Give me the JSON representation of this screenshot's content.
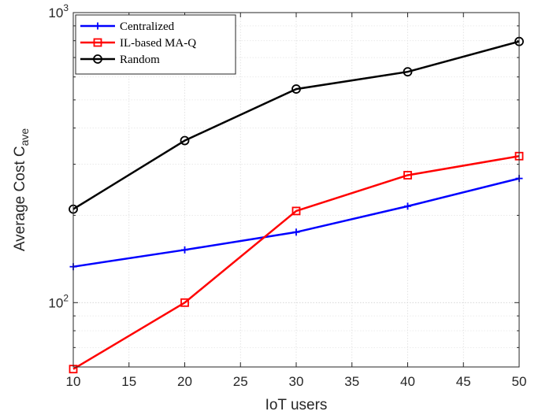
{
  "chart_data": {
    "type": "line",
    "title": "",
    "xlabel": "IoT users",
    "ylabel": "Average Cost C",
    "ylabel_sub": "ave",
    "yscale": "log",
    "x": [
      10,
      20,
      30,
      40,
      50
    ],
    "xlim": [
      10,
      50
    ],
    "xticks": [
      10,
      15,
      20,
      25,
      30,
      35,
      40,
      45,
      50
    ],
    "ylim": [
      60,
      1000
    ],
    "yticks": [
      {
        "value": 100,
        "base": "10",
        "exp": "2"
      },
      {
        "value": 1000,
        "base": "10",
        "exp": "3"
      }
    ],
    "grid": true,
    "legend_position": "top-left",
    "series": [
      {
        "name": "Centralized",
        "color": "#0000ff",
        "marker": "plus",
        "values": [
          133,
          152,
          175,
          215,
          268
        ]
      },
      {
        "name": "IL-based MA-Q",
        "color": "#ff0000",
        "marker": "square",
        "values": [
          59,
          100,
          207,
          275,
          320
        ]
      },
      {
        "name": "Random",
        "color": "#000000",
        "marker": "circle",
        "values": [
          210,
          362,
          545,
          625,
          795
        ]
      }
    ]
  }
}
